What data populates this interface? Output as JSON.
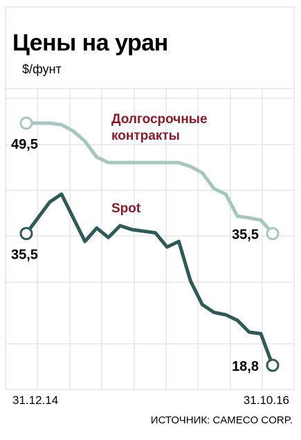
{
  "chart_data": {
    "type": "line",
    "title": "Цены на уран",
    "subtitle": "$/фунт",
    "xlabel": "",
    "ylabel": "",
    "x_tick_labels": [
      "31.12.14",
      "31.10.16"
    ],
    "ylim": [
      13,
      55
    ],
    "grid": true,
    "series": [
      {
        "name": "Долгосрочные контракты",
        "color": "#a6c6c0",
        "values": [
          49.5,
          49.5,
          49.5,
          49.3,
          48.5,
          47.2,
          45.2,
          44.5,
          44.5,
          44.5,
          44.5,
          44.5,
          44.5,
          44.5,
          44.0,
          43.2,
          41.2,
          40.5,
          37.7,
          37.5,
          37.2,
          35.5
        ],
        "start_label": "49,5",
        "end_label": "35,5"
      },
      {
        "name": "Spot",
        "color": "#2e5a57",
        "values": [
          35.5,
          37.5,
          39.5,
          40.5,
          37.5,
          34.5,
          36.2,
          35.0,
          36.5,
          36.0,
          35.8,
          35.6,
          33.8,
          34.5,
          29.5,
          26.5,
          25.5,
          25.2,
          24.5,
          23.0,
          22.8,
          18.8
        ],
        "start_label": "35,5",
        "end_label": "18,8"
      }
    ]
  },
  "source": "ИСТОЧНИК: CAMECO CORP."
}
